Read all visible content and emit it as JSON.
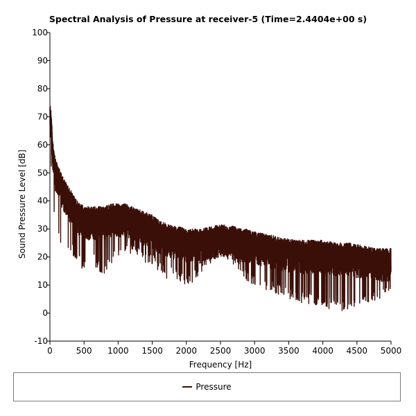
{
  "chart_data": {
    "type": "line",
    "title": "Spectral Analysis of Pressure at receiver-5 (Time=2.4404e+00 s)",
    "xlabel": "Frequency [Hz]",
    "ylabel": "Sound Pressure Level [dB]",
    "xlim": [
      0,
      5000
    ],
    "ylim": [
      -10,
      100
    ],
    "x_ticks": [
      0,
      500,
      1000,
      1500,
      2000,
      2500,
      3000,
      3500,
      4000,
      4500,
      5000
    ],
    "y_ticks": [
      -10,
      0,
      10,
      20,
      30,
      40,
      50,
      60,
      70,
      80,
      90,
      100
    ],
    "grid": false,
    "legend_position": "bottom",
    "series": [
      {
        "name": "Pressure",
        "color": "#3a0f08",
        "envelope": {
          "x": [
            0,
            20,
            40,
            60,
            80,
            100,
            150,
            200,
            300,
            400,
            500,
            600,
            700,
            800,
            900,
            1000,
            1100,
            1200,
            1300,
            1400,
            1500,
            1600,
            1700,
            1800,
            1900,
            2000,
            2100,
            2200,
            2300,
            2400,
            2500,
            2600,
            2700,
            2800,
            2900,
            3000,
            3200,
            3400,
            3600,
            3800,
            4000,
            4200,
            4400,
            4600,
            4800,
            5000
          ],
          "upper": [
            75,
            72,
            62,
            58,
            55,
            54,
            51,
            48,
            44,
            40,
            38,
            38,
            38,
            38,
            39,
            39,
            39,
            38,
            37,
            36,
            35,
            33,
            32,
            31,
            31,
            30,
            30,
            30,
            31,
            31,
            32,
            31,
            31,
            30,
            30,
            29,
            28,
            27,
            26,
            26,
            26,
            25,
            25,
            24,
            23,
            23
          ],
          "lower": [
            55,
            50,
            42,
            35,
            30,
            28,
            25,
            23,
            22,
            18,
            15,
            20,
            15,
            14,
            17,
            20,
            22,
            21,
            20,
            18,
            17,
            15,
            12,
            13,
            11,
            10,
            11,
            14,
            16,
            17,
            19,
            19,
            17,
            14,
            11,
            9,
            8,
            6,
            4,
            3,
            2,
            1,
            0,
            2,
            4,
            6
          ]
        }
      }
    ]
  }
}
